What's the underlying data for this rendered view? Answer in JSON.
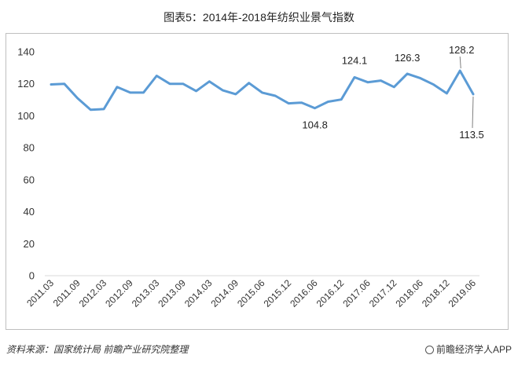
{
  "title": "图表5：2014年-2018年纺织业景气指数",
  "source": "资料来源：国家统计局 前瞻产业研究院整理",
  "brand": "前瞻经济学人APP",
  "colors": {
    "line": "#5B9BD5",
    "grid": "#d9d9d9",
    "leader": "#7f7f7f"
  },
  "chart_data": {
    "type": "line",
    "title": "图表5：2014年-2018年纺织业景气指数",
    "xlabel": "",
    "ylabel": "",
    "ylim": [
      0,
      140
    ],
    "yticks": [
      0,
      20,
      40,
      60,
      80,
      100,
      120,
      140
    ],
    "grid": false,
    "legend": "none",
    "x_tick_labels": [
      "2011.03",
      "2011.09",
      "2012.03",
      "2012.09",
      "2013.03",
      "2013.09",
      "2014.03",
      "2014.09",
      "2015.06",
      "2015.12",
      "2016.06",
      "2016.12",
      "2017.06",
      "2017.12",
      "2018.06",
      "2018.12",
      "2019.06"
    ],
    "x_tick_positions": [
      0,
      2,
      4,
      6,
      8,
      10,
      12,
      14,
      16,
      18,
      20,
      22,
      24,
      26,
      28,
      30,
      32
    ],
    "series": [
      {
        "values": [
          119.6,
          120.0,
          111.0,
          103.8,
          104.2,
          118.0,
          114.5,
          114.5,
          125.0,
          120.0,
          120.0,
          115.5,
          121.5,
          116.0,
          113.5,
          120.5,
          114.5,
          112.5,
          107.8,
          108.2,
          104.8,
          108.8,
          110.2,
          124.1,
          121.0,
          122.0,
          118.0,
          126.3,
          123.5,
          119.5,
          114.0,
          128.2,
          113.5
        ]
      }
    ],
    "annotations": [
      {
        "index": 20,
        "label": "104.8"
      },
      {
        "index": 23,
        "label": "124.1"
      },
      {
        "index": 27,
        "label": "126.3"
      },
      {
        "index": 31,
        "label": "128.2"
      },
      {
        "index": 32,
        "label": "113.5"
      }
    ]
  }
}
